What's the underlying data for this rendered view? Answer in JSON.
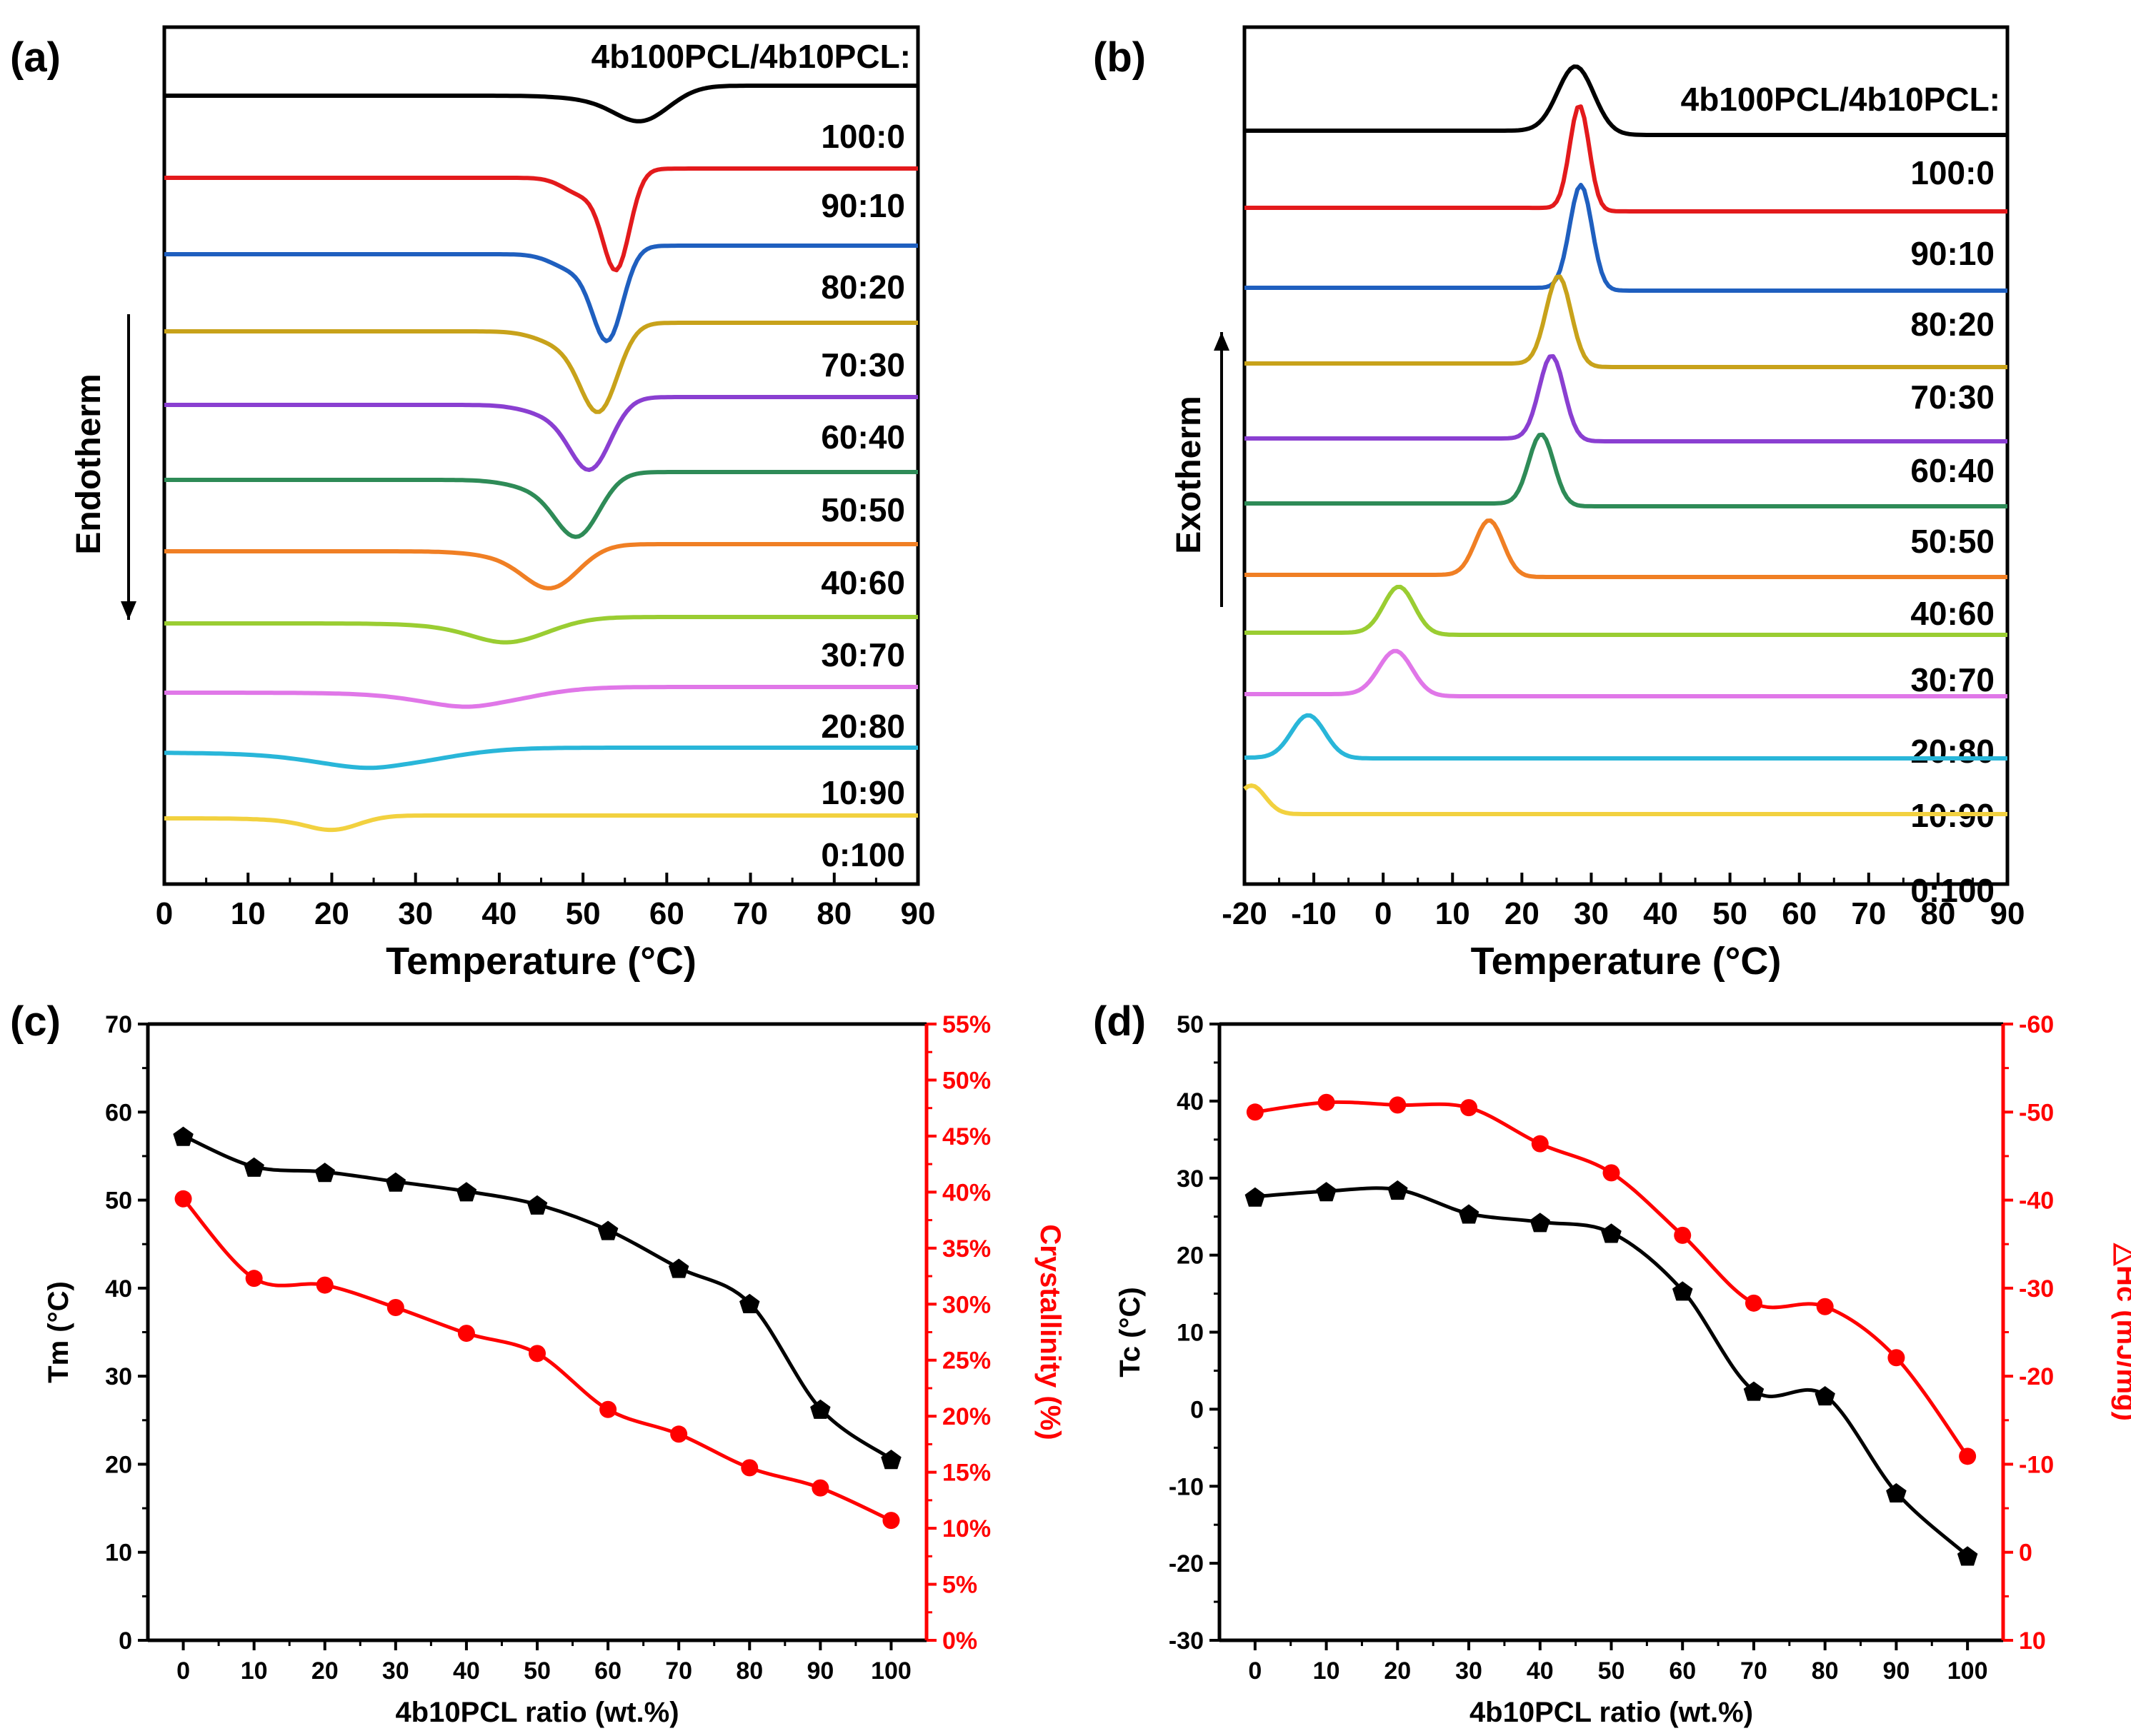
{
  "figure": {
    "panels": [
      "(a)",
      "(b)",
      "(c)",
      "(d)"
    ]
  },
  "chart_data": [
    {
      "panel": "(a)",
      "type": "line",
      "subtype": "dsc-heating-curves",
      "legend_title": "4b100PCL/4b10PCL:",
      "xlabel": "Temperature (°C)",
      "xlim": [
        0,
        90
      ],
      "xticks": [
        "0",
        "10",
        "20",
        "30",
        "40",
        "50",
        "60",
        "70",
        "80",
        "90"
      ],
      "arrow_label": "Endotherm",
      "arrow_direction": "down",
      "y_axis": "relative heat flow, stacked curves (no scale)",
      "series": [
        {
          "name": "100:0",
          "color": "#000000",
          "peak_T": 57.5
        },
        {
          "name": "90:10",
          "color": "#e31a1c",
          "peak_T": 54.0
        },
        {
          "name": "80:20",
          "color": "#1f5fbf",
          "peak_T": 53.0
        },
        {
          "name": "70:30",
          "color": "#c8a21a",
          "peak_T": 52.0
        },
        {
          "name": "60:40",
          "color": "#8a3fd1",
          "peak_T": 51.0
        },
        {
          "name": "50:50",
          "color": "#2e8b57",
          "peak_T": 49.5
        },
        {
          "name": "40:60",
          "color": "#f07f24",
          "peak_T": 46.5
        },
        {
          "name": "30:70",
          "color": "#9acd32",
          "peak_T": 42.0
        },
        {
          "name": "20:80",
          "color": "#e077e8",
          "peak_T": 38.0
        },
        {
          "name": "10:90",
          "color": "#29b6d9",
          "peak_T": 26.5
        },
        {
          "name": "0:100",
          "color": "#f2d13f",
          "peak_T": 20.5
        }
      ]
    },
    {
      "panel": "(b)",
      "type": "line",
      "subtype": "dsc-cooling-curves",
      "legend_title": "4b100PCL/4b10PCL:",
      "xlabel": "Temperature (°C)",
      "xlim": [
        -20,
        90
      ],
      "xticks": [
        "-20",
        "-10",
        "0",
        "10",
        "20",
        "30",
        "40",
        "50",
        "60",
        "70",
        "80",
        "90"
      ],
      "arrow_label": "Exotherm",
      "arrow_direction": "up",
      "y_axis": "relative heat flow, stacked curves (no scale)",
      "series": [
        {
          "name": "100:0",
          "color": "#000000",
          "peak_T": 27.8
        },
        {
          "name": "90:10",
          "color": "#e31a1c",
          "peak_T": 28.3
        },
        {
          "name": "80:20",
          "color": "#1f5fbf",
          "peak_T": 28.5
        },
        {
          "name": "70:30",
          "color": "#c8a21a",
          "peak_T": 25.3
        },
        {
          "name": "60:40",
          "color": "#8a3fd1",
          "peak_T": 24.3
        },
        {
          "name": "50:50",
          "color": "#2e8b57",
          "peak_T": 22.8
        },
        {
          "name": "40:60",
          "color": "#f07f24",
          "peak_T": 15.3
        },
        {
          "name": "30:70",
          "color": "#9acd32",
          "peak_T": 2.3
        },
        {
          "name": "20:80",
          "color": "#e077e8",
          "peak_T": 1.8
        },
        {
          "name": "10:90",
          "color": "#29b6d9",
          "peak_T": -10.8
        },
        {
          "name": "0:100",
          "color": "#f2d13f",
          "peak_T": -19.0
        }
      ]
    },
    {
      "panel": "(c)",
      "type": "line",
      "xlabel": "4b10PCL ratio (wt.%)",
      "x": [
        0,
        10,
        20,
        30,
        40,
        50,
        60,
        70,
        80,
        90,
        100
      ],
      "xlim": [
        -5,
        105
      ],
      "xticks": [
        "0",
        "10",
        "20",
        "30",
        "40",
        "50",
        "60",
        "70",
        "80",
        "90",
        "100"
      ],
      "ylabel_left": "Tm (°C)",
      "ylim_left": [
        0,
        70
      ],
      "yticks_left": [
        "0",
        "10",
        "20",
        "30",
        "40",
        "50",
        "60",
        "70"
      ],
      "ylabel_right": "Crystallinity (%)",
      "ylim_right": [
        0,
        55
      ],
      "yticks_right": [
        "0%",
        "5%",
        "10%",
        "15%",
        "20%",
        "25%",
        "30%",
        "35%",
        "40%",
        "45%",
        "50%",
        "55%"
      ],
      "series": [
        {
          "name": "Tm",
          "axis": "left",
          "color": "#000000",
          "marker": "pentagon",
          "values": [
            57.3,
            53.8,
            53.2,
            52.1,
            51.0,
            49.5,
            46.6,
            42.3,
            38.3,
            26.3,
            20.6
          ]
        },
        {
          "name": "Crystallinity",
          "axis": "right",
          "color": "#ff0000",
          "marker": "circle",
          "values": [
            39.4,
            32.3,
            31.7,
            29.7,
            27.4,
            25.6,
            20.6,
            18.4,
            15.4,
            13.6,
            10.7
          ]
        }
      ]
    },
    {
      "panel": "(d)",
      "type": "line",
      "xlabel": "4b10PCL ratio (wt.%)",
      "x": [
        0,
        10,
        20,
        30,
        40,
        50,
        60,
        70,
        80,
        90,
        100
      ],
      "xlim": [
        -5,
        105
      ],
      "xticks": [
        "0",
        "10",
        "20",
        "30",
        "40",
        "50",
        "60",
        "70",
        "80",
        "90",
        "100"
      ],
      "ylabel_left": "Tc (°C)",
      "ylim_left": [
        -30,
        50
      ],
      "yticks_left": [
        "-30",
        "-20",
        "-10",
        "0",
        "10",
        "20",
        "30",
        "40",
        "50"
      ],
      "ylabel_right": "△Hc (mJ/mg)",
      "ylim_right": [
        10,
        -60
      ],
      "yticks_right": [
        "10",
        "0",
        "-10",
        "-20",
        "-30",
        "-40",
        "-50",
        "-60"
      ],
      "series": [
        {
          "name": "Tc",
          "axis": "left",
          "color": "#000000",
          "marker": "pentagon",
          "values": [
            27.6,
            28.3,
            28.5,
            25.4,
            24.3,
            22.9,
            15.4,
            2.4,
            1.8,
            -10.8,
            -19.0
          ]
        },
        {
          "name": "ΔHc",
          "axis": "right",
          "color": "#ff0000",
          "marker": "circle",
          "values": [
            -50.0,
            -51.1,
            -50.8,
            -50.5,
            -46.4,
            -43.1,
            -36.0,
            -28.3,
            -27.9,
            -22.1,
            -10.9
          ]
        }
      ]
    }
  ]
}
